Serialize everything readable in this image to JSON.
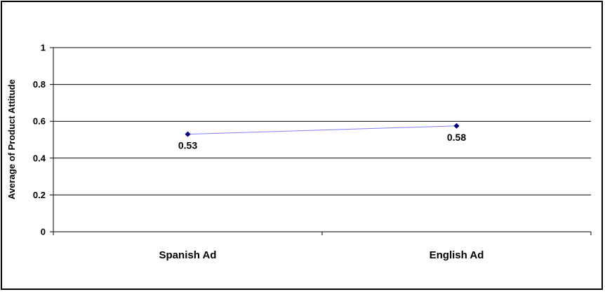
{
  "chart_data": {
    "type": "line",
    "title": "",
    "xlabel": "",
    "ylabel": "Average of Product Attitude",
    "categories": [
      "Spanish Ad",
      "English Ad"
    ],
    "series": [
      {
        "values": [
          0.53,
          0.575
        ],
        "data_labels": [
          "0.53",
          "0.58"
        ]
      }
    ],
    "ylim": [
      0,
      1
    ],
    "yticks": [
      0,
      0.2,
      0.4,
      0.6,
      0.8,
      1
    ],
    "ytick_labels": [
      "0",
      "0.2",
      "0.4",
      "0.6",
      "0.8",
      "1"
    ],
    "grid": true,
    "legend": "none",
    "colors": {
      "line": "#8080ff",
      "marker": "#000080",
      "grid": "#000000"
    }
  }
}
